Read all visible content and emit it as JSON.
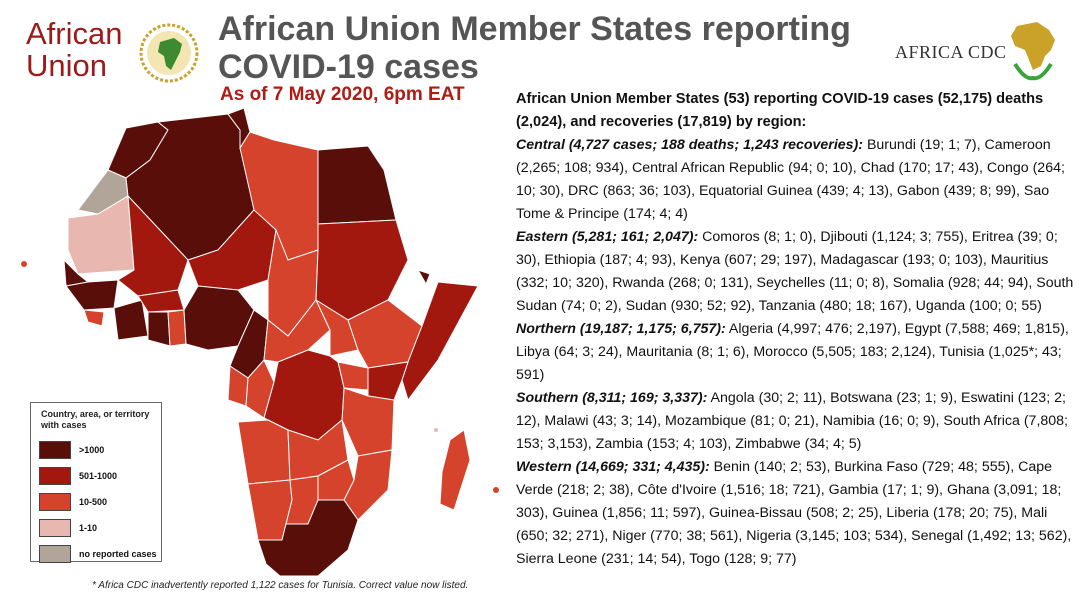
{
  "header": {
    "au_logo_line1": "African",
    "au_logo_line2": "Union",
    "title": "African Union Member States reporting COVID-19 cases",
    "subtitle": "As of 7 May 2020, 6pm EAT",
    "cdc_logo": "AFRICA CDC"
  },
  "legend": {
    "title": "Country, area, or territory with cases",
    "items": [
      {
        "label": ">1000",
        "color": "#5a0e0a"
      },
      {
        "label": "501-1000",
        "color": "#a3180e"
      },
      {
        "label": "10-500",
        "color": "#d5432c"
      },
      {
        "label": "1-10",
        "color": "#e8b8b0"
      },
      {
        "label": "no reported cases",
        "color": "#b0a598"
      }
    ]
  },
  "footnote": "* Africa CDC inadvertently reported 1,122 cases for Tunisia. Correct value now listed.",
  "summary": {
    "headline": "African Union Member States (53) reporting COVID-19 cases (52,175) deaths (2,024), and recoveries (17,819) by region:",
    "regions": [
      {
        "label": "Central (4,727 cases; 188 deaths; 1,243 recoveries):",
        "text": " Burundi (19; 1; 7), Cameroon (2,265; 108; 934), Central African Republic (94; 0; 10), Chad (170; 17; 43), Congo (264; 10; 30), DRC (863; 36; 103), Equatorial Guinea (439; 4; 13), Gabon (439; 8; 99), Sao Tome & Principe (174; 4; 4)"
      },
      {
        "label": "Eastern (5,281; 161; 2,047):",
        "text": " Comoros (8; 1; 0), Djibouti (1,124; 3; 755), Eritrea (39; 0; 30), Ethiopia (187; 4; 93), Kenya (607; 29; 197), Madagascar (193; 0; 103), Mauritius (332; 10; 320), Rwanda (268; 0; 131), Seychelles (11; 0; 8), Somalia (928; 44; 94), South Sudan (74; 0; 2), Sudan (930; 52; 92), Tanzania (480; 18; 167), Uganda (100; 0; 55)"
      },
      {
        "label": "Northern (19,187; 1,175; 6,757):",
        "text": " Algeria (4,997; 476; 2,197), Egypt (7,588; 469; 1,815), Libya (64; 3; 24), Mauritania (8; 1; 6), Morocco (5,505; 183; 2,124), Tunisia (1,025*; 43; 591)"
      },
      {
        "label": "Southern (8,311; 169; 3,337):",
        "text": " Angola (30; 2; 11), Botswana (23; 1; 9), Eswatini (123; 2; 12), Malawi (43; 3; 14), Mozambique (81; 0; 21), Namibia (16; 0; 9), South Africa (7,808; 153; 3,153), Zambia (153; 4; 103), Zimbabwe (34; 4; 5)"
      },
      {
        "label": "Western (14,669; 331; 4,435):",
        "text": " Benin (140; 2; 53), Burkina Faso (729; 48; 555), Cape Verde (218; 2; 38), Côte d'Ivoire (1,516; 18; 721), Gambia (17; 1; 9), Ghana (3,091; 18; 303), Guinea (1,856; 11; 597), Guinea-Bissau (508; 2; 25), Liberia (178; 20; 75), Mali (650; 32; 271), Niger (770; 38; 561), Nigeria (3,145; 103; 534), Senegal (1,492; 13; 562), Sierra Leone (231; 14; 54), Togo (128; 9; 77)"
      }
    ]
  },
  "colors": {
    "title_gray": "#555555",
    "subtitle_red": "#b01b14",
    "dark": "#5a0e0a",
    "medium": "#a3180e",
    "light": "#d5432c",
    "pink": "#e8b8b0",
    "gray": "#b0a598"
  }
}
